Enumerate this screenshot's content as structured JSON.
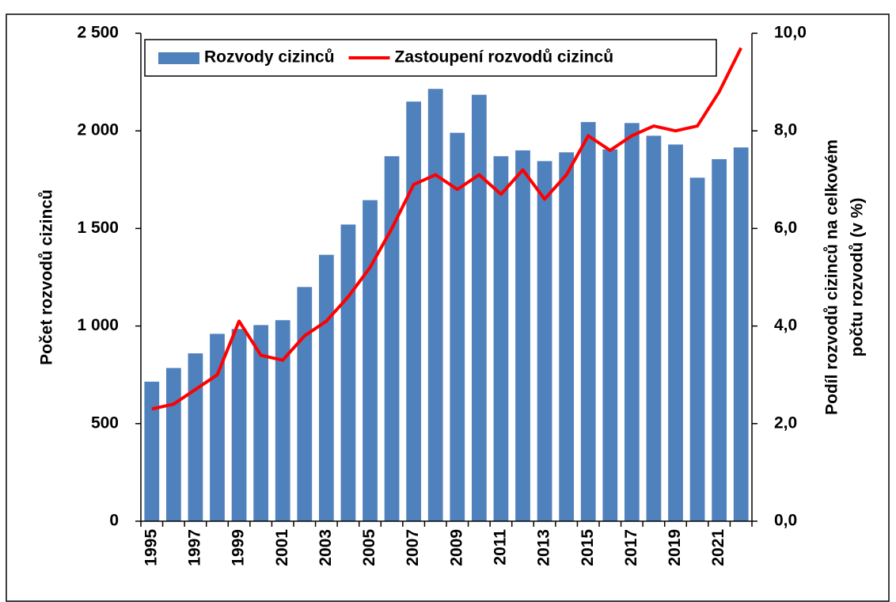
{
  "chart_data": {
    "type": "bar",
    "y_label": "Počet rozvodů cizinců",
    "y2_label": [
      "Podíl rozvodů cizinců na celkovém",
      "počtu rozvodů (v %)"
    ],
    "categories": [
      "1995",
      null,
      "1997",
      null,
      "1999",
      null,
      "2001",
      null,
      "2003",
      null,
      "2005",
      null,
      "2007",
      null,
      "2009",
      null,
      "2011",
      null,
      "2013",
      null,
      "2015",
      null,
      "2017",
      null,
      "2019",
      null,
      "2021",
      null
    ],
    "series": [
      {
        "name": "Rozvody cizinců",
        "type": "bar",
        "color": "#4f81bd",
        "values": [
          715,
          785,
          860,
          960,
          985,
          1005,
          1030,
          1200,
          1365,
          1520,
          1645,
          1870,
          2150,
          2215,
          1990,
          2185,
          1870,
          1900,
          1845,
          1890,
          2045,
          1905,
          2040,
          1975,
          1930,
          1760,
          1855,
          1915
        ]
      },
      {
        "name": "Zastoupení rozvodů cizinců",
        "type": "line",
        "axis": "y2",
        "color": "#ff0000",
        "values": [
          2.3,
          2.4,
          2.7,
          3.0,
          4.1,
          3.4,
          3.3,
          3.8,
          4.1,
          4.6,
          5.2,
          6.0,
          6.9,
          7.1,
          6.8,
          7.1,
          6.7,
          7.2,
          6.6,
          7.1,
          7.9,
          7.6,
          7.9,
          8.1,
          8.0,
          8.1,
          8.8,
          9.7
        ]
      }
    ],
    "ylim": [
      0,
      2500
    ],
    "yticks": [
      0,
      500,
      {
        "value": 1000,
        "label": "1 000"
      },
      {
        "value": 1500,
        "label": "1 500"
      },
      {
        "value": 2000,
        "label": "2 000"
      },
      {
        "value": 2500,
        "label": "2 500"
      }
    ],
    "y2lim": [
      0,
      10
    ],
    "y2ticks": [
      {
        "value": 0,
        "label": "0,0"
      },
      {
        "value": 2,
        "label": "2,0"
      },
      {
        "value": 4,
        "label": "4,0"
      },
      {
        "value": 6,
        "label": "6,0"
      },
      {
        "value": 8,
        "label": "8,0"
      },
      {
        "value": 10,
        "label": "10,0"
      }
    ],
    "grid": false,
    "legend": "top-left"
  }
}
